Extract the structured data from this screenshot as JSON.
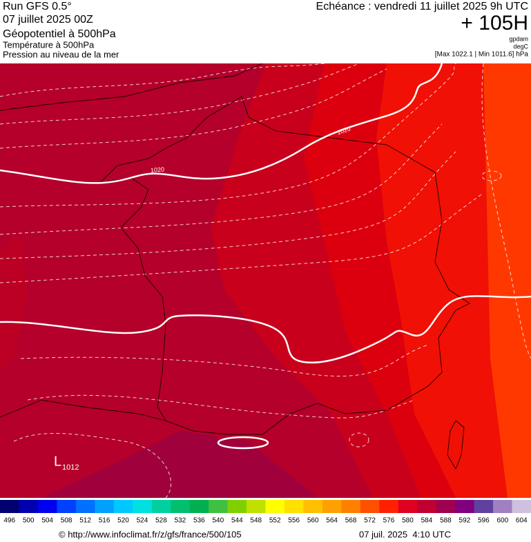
{
  "header": {
    "run": "Run GFS 0.5°",
    "date": "07 juillet 2025 00Z",
    "title": "Géopotentiel à 500hPa",
    "subtitle_1": "Température à 500hPa",
    "subtitle_2": "Pression au niveau de la mer",
    "echeance": "Echéance : vendredi 11 juillet 2025 9h UTC",
    "lead": "+ 105H",
    "unit_1": "gpdam",
    "unit_2": "degC",
    "range": "[Max 1022.1 | Min 1011.6] hPa"
  },
  "map": {
    "isobar_labels": [
      "1020",
      "1020"
    ],
    "low_symbol": "L",
    "low_value": "1012"
  },
  "colorbar": {
    "labels": [
      "496",
      "500",
      "504",
      "508",
      "512",
      "516",
      "520",
      "524",
      "528",
      "532",
      "536",
      "540",
      "544",
      "548",
      "552",
      "556",
      "560",
      "564",
      "568",
      "572",
      "576",
      "580",
      "584",
      "588",
      "592",
      "596",
      "600",
      "604"
    ],
    "colors": [
      "#000070",
      "#0000b0",
      "#0000f0",
      "#0040ff",
      "#0070ff",
      "#00a0ff",
      "#00c8ff",
      "#00e0e0",
      "#00d0a0",
      "#00c070",
      "#00b050",
      "#40c040",
      "#80d000",
      "#c0e000",
      "#ffff00",
      "#ffe000",
      "#ffc000",
      "#ffa000",
      "#ff8000",
      "#ff5000",
      "#ff2000",
      "#e00020",
      "#c00030",
      "#a00050",
      "#800080",
      "#6040a0",
      "#a080c0",
      "#d0c0e0"
    ]
  },
  "footer": {
    "source": "© http://www.infoclimat.fr/z/gfs/france/500/105",
    "timestamp": "07 juil. 2025  4:10 UTC"
  }
}
